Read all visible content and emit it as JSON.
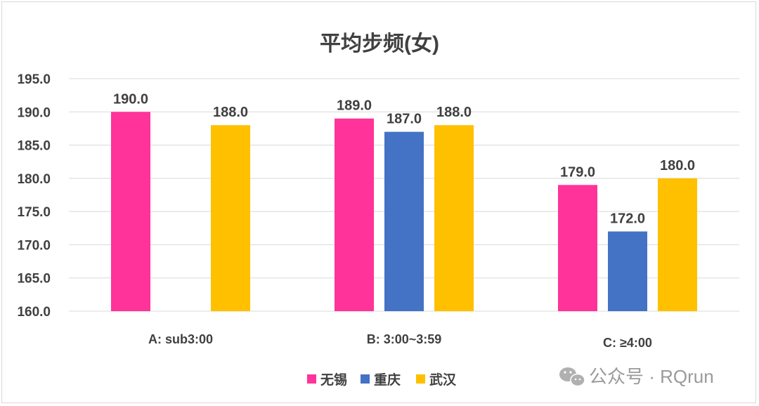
{
  "chart_data": {
    "type": "bar",
    "title": "平均步频(女)",
    "categories": [
      "A: sub3:00",
      "B: 3:00~3:59",
      "C: ≥4:00"
    ],
    "series": [
      {
        "name": "无锡",
        "color": "#ff3399",
        "values": [
          190.0,
          189.0,
          179.0
        ]
      },
      {
        "name": "重庆",
        "color": "#4472c4",
        "values": [
          null,
          187.0,
          172.0
        ]
      },
      {
        "name": "武汉",
        "color": "#ffc000",
        "values": [
          188.0,
          188.0,
          180.0
        ]
      }
    ],
    "ylim": [
      160,
      195
    ],
    "yticks": [
      "160.0",
      "165.0",
      "170.0",
      "175.0",
      "180.0",
      "185.0",
      "190.0",
      "195.0"
    ],
    "grid": true,
    "legend_position": "bottom"
  },
  "watermark": {
    "icon": "wechat-icon",
    "text": "公众号 · RQrun"
  }
}
